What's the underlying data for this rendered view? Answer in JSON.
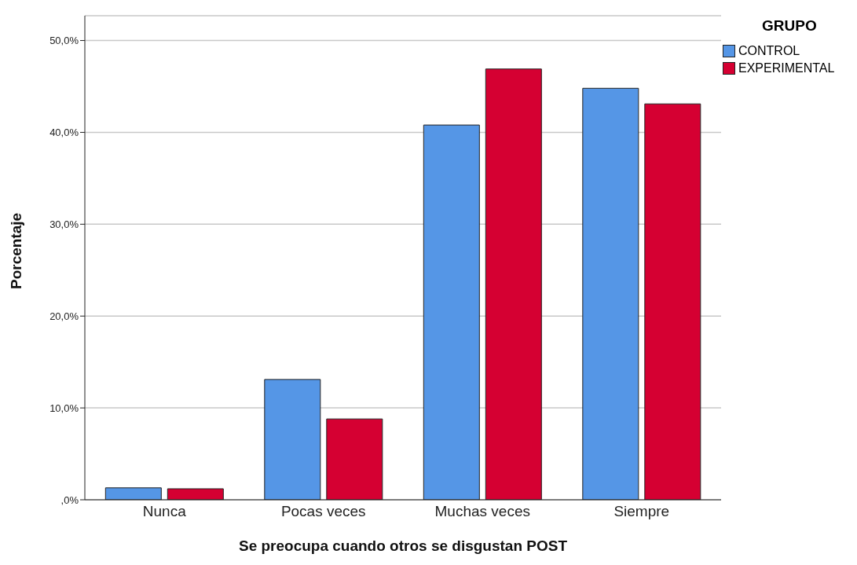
{
  "chart_data": {
    "type": "bar",
    "xlabel": "Se preocupa cuando otros se disgustan POST",
    "ylabel": "Porcentaje",
    "legend_title": "GRUPO",
    "categories": [
      "Nunca",
      "Pocas veces",
      "Muchas veces",
      "Siempre"
    ],
    "series": [
      {
        "name": "CONTROL",
        "color": "#5596e6",
        "values": [
          1.3,
          13.1,
          40.8,
          44.8
        ]
      },
      {
        "name": "EXPERIMENTAL",
        "color": "#d50032",
        "values": [
          1.2,
          8.8,
          46.9,
          43.1
        ]
      }
    ],
    "ylim": [
      0,
      52.7
    ],
    "yticks": [
      {
        "value": 0,
        "label": ",0%"
      },
      {
        "value": 10,
        "label": "10,0%"
      },
      {
        "value": 20,
        "label": "20,0%"
      },
      {
        "value": 30,
        "label": "30,0%"
      },
      {
        "value": 40,
        "label": "40,0%"
      },
      {
        "value": 50,
        "label": "50,0%"
      }
    ],
    "grid": "y",
    "legend": "top right"
  }
}
